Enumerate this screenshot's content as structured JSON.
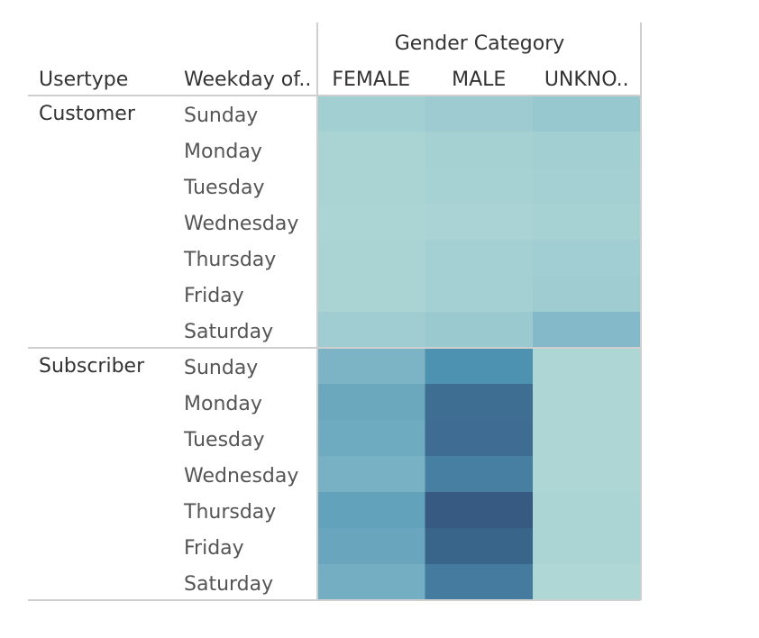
{
  "chart_data": {
    "type": "heatmap",
    "column_header": "Gender Category",
    "row_headers": [
      "Usertype",
      "Weekday of.."
    ],
    "columns": [
      "FEMALE",
      "MALE",
      "UNKNO.."
    ],
    "groups": [
      {
        "name": "Customer",
        "rows": [
          {
            "day": "Sunday",
            "values": [
              0.26,
              0.3,
              0.34
            ]
          },
          {
            "day": "Monday",
            "values": [
              0.2,
              0.23,
              0.26
            ]
          },
          {
            "day": "Tuesday",
            "values": [
              0.2,
              0.22,
              0.24
            ]
          },
          {
            "day": "Wednesday",
            "values": [
              0.19,
              0.21,
              0.22
            ]
          },
          {
            "day": "Thursday",
            "values": [
              0.2,
              0.24,
              0.27
            ]
          },
          {
            "day": "Friday",
            "values": [
              0.2,
              0.24,
              0.29
            ]
          },
          {
            "day": "Saturday",
            "values": [
              0.28,
              0.32,
              0.43
            ]
          }
        ]
      },
      {
        "name": "Subscriber",
        "rows": [
          {
            "day": "Sunday",
            "values": [
              0.46,
              0.68,
              0.18
            ]
          },
          {
            "day": "Monday",
            "values": [
              0.54,
              0.87,
              0.18
            ]
          },
          {
            "day": "Tuesday",
            "values": [
              0.52,
              0.88,
              0.18
            ]
          },
          {
            "day": "Wednesday",
            "values": [
              0.48,
              0.78,
              0.18
            ]
          },
          {
            "day": "Thursday",
            "values": [
              0.58,
              0.98,
              0.19
            ]
          },
          {
            "day": "Friday",
            "values": [
              0.55,
              0.92,
              0.19
            ]
          },
          {
            "day": "Saturday",
            "values": [
              0.5,
              0.8,
              0.17
            ]
          }
        ]
      }
    ],
    "color_scale": [
      "#c5e6da",
      "#98c8d0",
      "#4f94b3",
      "#34567f"
    ],
    "value_note": "relative intensity 0-1 (no legend shown)"
  }
}
